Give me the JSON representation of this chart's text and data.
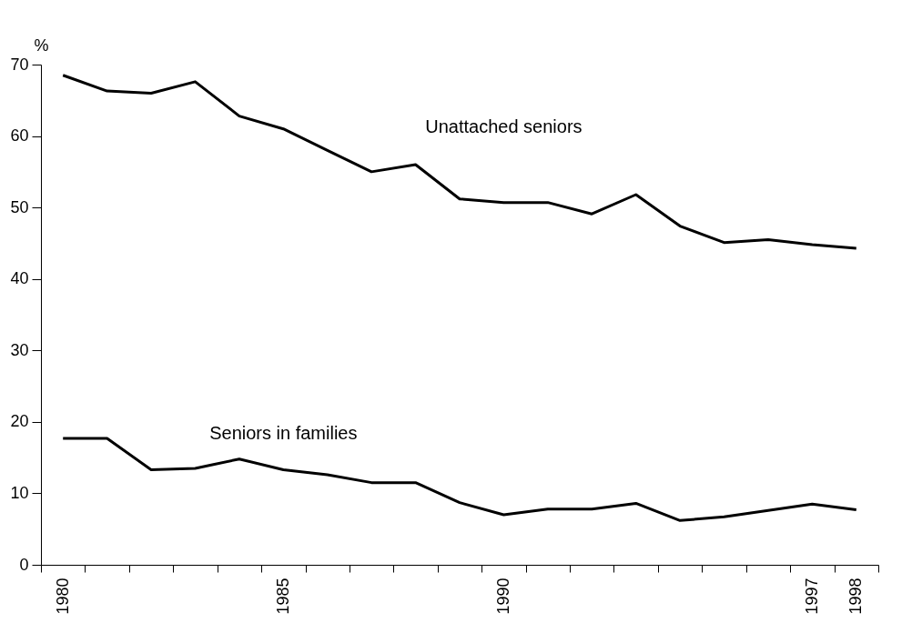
{
  "chart_data": {
    "type": "line",
    "ylabel": "%",
    "categories": [
      "1980",
      null,
      null,
      null,
      null,
      "1985",
      null,
      null,
      null,
      null,
      "1990",
      null,
      null,
      null,
      null,
      null,
      null,
      "1997",
      "1998"
    ],
    "series": [
      {
        "name": "Unattached seniors",
        "color": "#000000",
        "values": [
          68.5,
          66.3,
          66.0,
          67.6,
          62.8,
          61.0,
          58.0,
          55.0,
          56.0,
          51.2,
          50.7,
          50.7,
          49.1,
          51.8,
          47.4,
          45.1,
          45.5,
          44.8,
          44.3
        ]
      },
      {
        "name": "Seniors in families",
        "color": "#000000",
        "values": [
          17.7,
          17.7,
          13.3,
          13.5,
          14.8,
          13.3,
          12.6,
          11.5,
          11.5,
          8.7,
          7.0,
          7.8,
          7.8,
          8.6,
          6.2,
          6.7,
          7.6,
          8.5,
          7.7
        ]
      }
    ],
    "ylim": [
      0,
      70
    ],
    "yticks": [
      0,
      10,
      20,
      30,
      40,
      50,
      60,
      70
    ],
    "grid": false,
    "legend": false,
    "marker": "none",
    "line_style": "solid"
  }
}
